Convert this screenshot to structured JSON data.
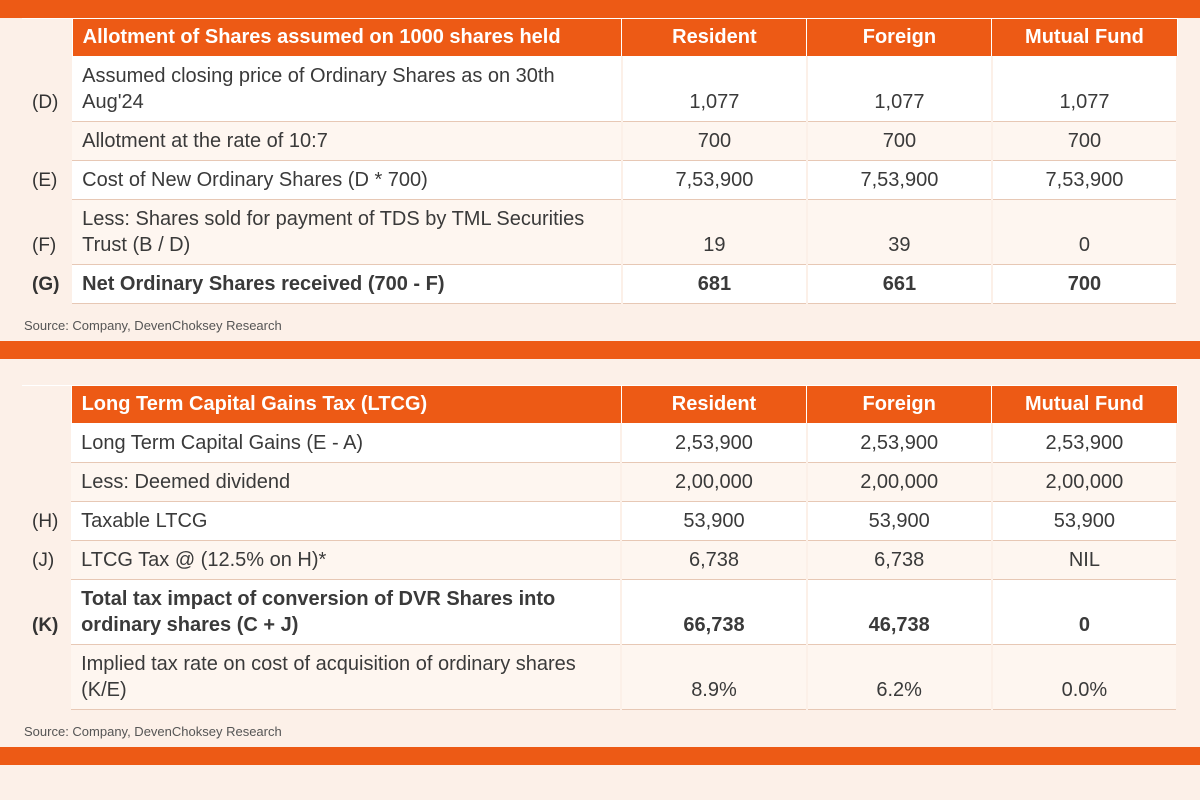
{
  "colors": {
    "accent": "#ed5a15",
    "page_bg": "#fcf0e8",
    "row_alt": "#fef6f0",
    "row_border": "#e7c8b5",
    "text": "#3a3a3a"
  },
  "source_text": "Source: Company, DevenChoksey Research",
  "table1": {
    "header": {
      "title": "Allotment of Shares assumed on 1000 shares held",
      "col1": "Resident",
      "col2": "Foreign",
      "col3": "Mutual Fund"
    },
    "rows": [
      {
        "ref": "(D)",
        "label": "Assumed closing price of Ordinary Shares as on 30th Aug'24",
        "c1": "1,077",
        "c2": "1,077",
        "c3": "1,077",
        "bold": false
      },
      {
        "ref": "",
        "label": "Allotment at the rate of 10:7",
        "c1": "700",
        "c2": "700",
        "c3": "700",
        "bold": false
      },
      {
        "ref": "(E)",
        "label": "Cost of New Ordinary Shares (D * 700)",
        "c1": "7,53,900",
        "c2": "7,53,900",
        "c3": "7,53,900",
        "bold": false
      },
      {
        "ref": "(F)",
        "label": "Less: Shares sold for payment of TDS by TML Securities Trust (B / D)",
        "c1": "19",
        "c2": "39",
        "c3": "0",
        "bold": false
      },
      {
        "ref": "(G)",
        "label": "Net Ordinary Shares received (700 - F)",
        "c1": "681",
        "c2": "661",
        "c3": "700",
        "bold": true
      }
    ]
  },
  "table2": {
    "header": {
      "title": "Long Term Capital Gains Tax  (LTCG)",
      "col1": "Resident",
      "col2": "Foreign",
      "col3": "Mutual Fund"
    },
    "rows": [
      {
        "ref": "",
        "label": "Long Term Capital Gains (E - A)",
        "c1": "2,53,900",
        "c2": "2,53,900",
        "c3": "2,53,900",
        "bold": false
      },
      {
        "ref": "",
        "label": "Less: Deemed dividend",
        "c1": "2,00,000",
        "c2": "2,00,000",
        "c3": "2,00,000",
        "bold": false
      },
      {
        "ref": "(H)",
        "label": "Taxable LTCG",
        "c1": "53,900",
        "c2": "53,900",
        "c3": "53,900",
        "bold": false
      },
      {
        "ref": "(J)",
        "label": "LTCG Tax @ (12.5% on H)*",
        "c1": "6,738",
        "c2": "6,738",
        "c3": "NIL",
        "bold": false
      },
      {
        "ref": "(K)",
        "label": "Total tax impact of conversion of DVR Shares into ordinary shares (C + J)",
        "c1": "66,738",
        "c2": "46,738",
        "c3": "0",
        "bold": true
      },
      {
        "ref": "",
        "label": "Implied tax rate on cost of acquisition of ordinary shares (K/E)",
        "c1": "8.9%",
        "c2": "6.2%",
        "c3": "0.0%",
        "bold": false
      }
    ]
  }
}
